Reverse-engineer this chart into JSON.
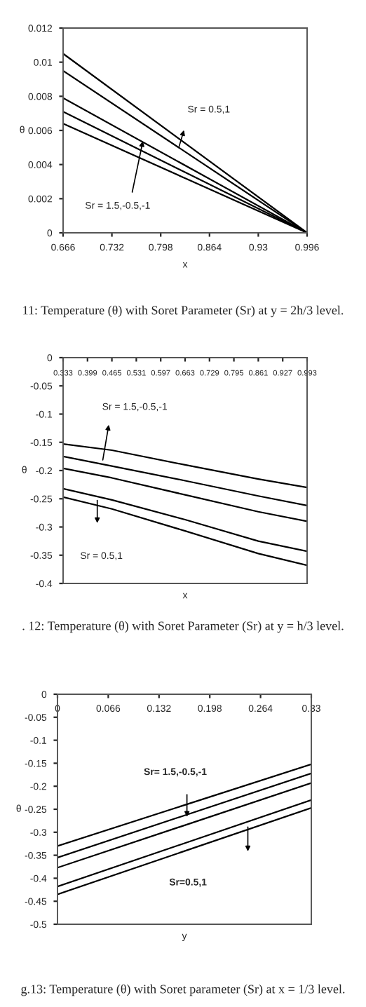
{
  "chart_data": [
    {
      "type": "line",
      "xlabel": "x",
      "ylabel": "θ",
      "xlim": [
        0.666,
        0.996
      ],
      "xticks": [
        0.666,
        0.732,
        0.798,
        0.864,
        0.93,
        0.996
      ],
      "ylim": [
        0,
        0.012
      ],
      "yticks": [
        0,
        0.002,
        0.004,
        0.006,
        0.008,
        0.01,
        0.012
      ],
      "grid": false,
      "legend": false,
      "marker": "none",
      "line_style": "solid",
      "x": [
        0.666,
        0.996
      ],
      "series": [
        {
          "color": "#000000",
          "values": [
            0.0105,
            0
          ]
        },
        {
          "color": "#000000",
          "values": [
            0.0095,
            0
          ]
        },
        {
          "color": "#000000",
          "values": [
            0.0079,
            0
          ]
        },
        {
          "color": "#000000",
          "values": [
            0.0071,
            0
          ]
        },
        {
          "color": "#000000",
          "values": [
            0.0064,
            0
          ]
        }
      ],
      "annotations": [
        "Sr = 0.5,1",
        {
          "text": "Sr = 1.5,-0.5,-1",
          "x": 0.775,
          "y": 0.0056
        },
        "11: Temperature (θ) with Soret Parameter (Sr) at y = 2h/3 level."
      ]
    },
    {
      "type": "line",
      "xlabel": "x",
      "ylabel": "θ",
      "xlim": [
        0.333,
        0.993
      ],
      "xticks": [
        0.333,
        0.399,
        0.465,
        0.531,
        0.597,
        0.663,
        0.729,
        0.795,
        0.861,
        0.927,
        0.993
      ],
      "ylim": [
        -0.4,
        0
      ],
      "yticks": [
        -0.4,
        -0.35,
        -0.3,
        -0.25,
        -0.2,
        -0.15,
        -0.1,
        -0.05,
        0
      ],
      "grid": false,
      "legend": false,
      "marker": "none",
      "line_style": "solid",
      "x": [
        0.333,
        0.465,
        0.663,
        0.861,
        0.993
      ],
      "series": [
        {
          "color": "#000000",
          "values": [
            -0.153,
            -0.164,
            -0.19,
            -0.215,
            -0.23
          ]
        },
        {
          "color": "#000000",
          "values": [
            -0.175,
            -0.192,
            -0.218,
            -0.245,
            -0.262
          ]
        },
        {
          "color": "#000000",
          "values": [
            -0.196,
            -0.213,
            -0.243,
            -0.273,
            -0.29
          ]
        },
        {
          "color": "#000000",
          "values": [
            -0.232,
            -0.252,
            -0.287,
            -0.325,
            -0.343
          ]
        },
        {
          "color": "#000000",
          "values": [
            -0.247,
            -0.268,
            -0.307,
            -0.347,
            -0.368
          ]
        }
      ],
      "annotations": [
        "Sr = 1.5,-0.5,-1",
        "Sr = 0.5,1",
        ". 12: Temperature (θ) with Soret Parameter (Sr) at y = h/3 level."
      ]
    },
    {
      "type": "line",
      "xlabel": "y",
      "ylabel": "θ",
      "xlim": [
        0,
        0.33
      ],
      "xticks": [
        0,
        0.066,
        0.132,
        0.198,
        0.264,
        0.33
      ],
      "ylim": [
        -0.5,
        0
      ],
      "yticks": [
        -0.5,
        -0.45,
        -0.4,
        -0.35,
        -0.3,
        -0.25,
        -0.2,
        -0.15,
        -0.1,
        -0.05,
        0
      ],
      "grid": false,
      "legend": false,
      "marker": "none",
      "line_style": "solid",
      "x": [
        0,
        0.33
      ],
      "series": [
        {
          "color": "#000000",
          "values": [
            -0.33,
            -0.152
          ]
        },
        {
          "color": "#000000",
          "values": [
            -0.355,
            -0.172
          ]
        },
        {
          "color": "#000000",
          "values": [
            -0.377,
            -0.193
          ]
        },
        {
          "color": "#000000",
          "values": [
            -0.418,
            -0.23
          ]
        },
        {
          "color": "#000000",
          "values": [
            -0.435,
            -0.247
          ]
        }
      ],
      "annotations": [
        "Sr= 1.5,-0.5,-1",
        "Sr=0.5,1",
        "g.13: Temperature (θ) with Soret parameter (Sr) at x = 1/3 level."
      ]
    }
  ]
}
